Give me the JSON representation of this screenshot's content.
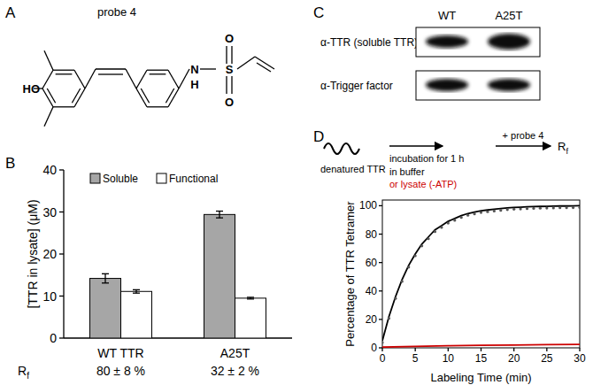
{
  "panels": [
    "A",
    "B",
    "C",
    "D"
  ],
  "structure": {
    "title": "probe 4",
    "atoms": [
      "HO",
      "N",
      "H",
      "S",
      "O",
      "O"
    ]
  },
  "blot": {
    "columns": [
      "WT",
      "A25T"
    ],
    "rows": [
      "α-TTR (soluble TTR)",
      "α-Trigger factor"
    ]
  },
  "scheme": {
    "start": "denatured TTR",
    "step": "incubation for 1 h",
    "reagent": "+ probe 4",
    "product": "R",
    "product_sub": "f"
  },
  "chart_data": [
    {
      "type": "bar",
      "categories": [
        "WT TTR",
        "A25T"
      ],
      "series": [
        {
          "name": "Soluble",
          "color": "#a6a6a6",
          "values": [
            14.2,
            29.4
          ],
          "errors": [
            1.1,
            0.8
          ]
        },
        {
          "name": "Functional",
          "color": "#ffffff",
          "values": [
            11.1,
            9.5
          ],
          "errors": [
            0.4,
            0.2
          ]
        }
      ],
      "ylabel": "[TTR in lysate] (μM)",
      "ylim": [
        0,
        40
      ],
      "yticks": [
        0,
        10,
        20,
        30,
        40
      ],
      "legend": "top-left",
      "row_label": "R",
      "row_label_sub": "f",
      "row_values": [
        "80 ± 8 %",
        "32 ± 2 %"
      ]
    },
    {
      "type": "line",
      "xlabel": "Labeling Time (min)",
      "ylabel": "Percentage of TTR Tetramer",
      "xlim": [
        0,
        30
      ],
      "ylim": [
        0,
        104
      ],
      "xticks": [
        0,
        5,
        10,
        15,
        20,
        25,
        30
      ],
      "yticks": [
        0,
        20,
        40,
        60,
        80,
        100
      ],
      "series": [
        {
          "name": "in buffer",
          "color": "#000000",
          "marker": "dot",
          "x": [
            0,
            1,
            2,
            3,
            4,
            5,
            6,
            7,
            8,
            9,
            10,
            11,
            12,
            13,
            14,
            15,
            16,
            17,
            18,
            19,
            20,
            21,
            22,
            23,
            24,
            25,
            26,
            27,
            28,
            29,
            30
          ],
          "values": [
            5,
            22,
            36,
            48,
            58,
            66,
            73,
            78,
            83,
            86,
            89,
            91,
            93,
            94.5,
            95.5,
            96.5,
            97,
            97.5,
            98,
            98.5,
            98.8,
            99,
            99.2,
            99.4,
            99.5,
            99.6,
            99.7,
            99.8,
            99.8,
            99.9,
            100
          ]
        },
        {
          "name": "or lysate (-ATP)",
          "color": "#cc0000",
          "x": [
            0,
            5,
            10,
            15,
            20,
            25,
            30
          ],
          "values": [
            0.5,
            1,
            1.5,
            1.8,
            2,
            2.2,
            2.4
          ]
        }
      ]
    }
  ]
}
